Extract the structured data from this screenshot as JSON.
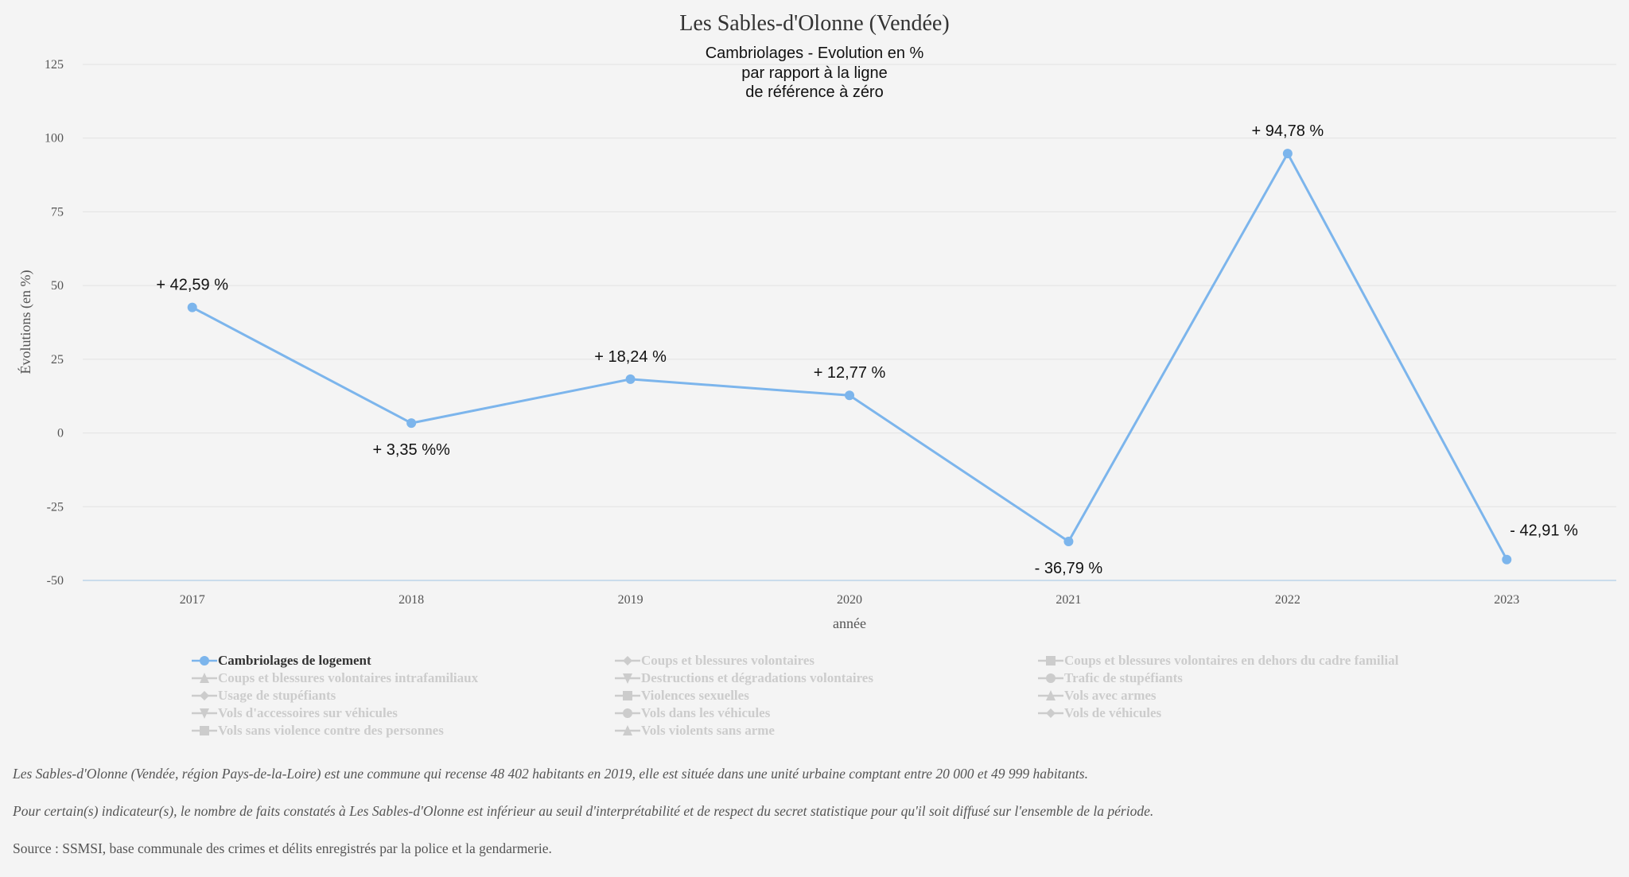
{
  "colors": {
    "series": "#7cb5ec",
    "inactive": "#cccccc",
    "background": "#f4f4f4"
  },
  "chart_data": {
    "type": "line",
    "title": "Les Sables-d'Olonne (Vendée)",
    "subtitle": [
      "Cambriolages - Evolution en %",
      "par rapport à la ligne",
      "de référence à zéro"
    ],
    "xlabel": "année",
    "ylabel": "Évolutions (en %)",
    "ylim": [
      -50,
      125
    ],
    "yticks": [
      -50,
      -25,
      0,
      25,
      50,
      75,
      100,
      125
    ],
    "ytick_labels": [
      "-50",
      "-25",
      "0",
      "25",
      "50",
      "75",
      "100",
      "125"
    ],
    "categories": [
      "2017",
      "2018",
      "2019",
      "2020",
      "2021",
      "2022",
      "2023"
    ],
    "grid": true,
    "series": [
      {
        "name": "Cambriolages de logement",
        "values": [
          42.59,
          3.35,
          18.24,
          12.77,
          -36.79,
          94.78,
          -42.91
        ],
        "labels": [
          "+ 42,59 %",
          "+ 3,35 %%",
          "+ 18,24 %",
          "+ 12,77 %",
          "- 36,79 %",
          "+ 94,78 %",
          "- 42,91 %"
        ],
        "label_positions": [
          "above",
          "below",
          "above",
          "above",
          "below",
          "above",
          "above-right"
        ]
      }
    ]
  },
  "legend": {
    "items": [
      {
        "label": "Cambriolages de logement",
        "symbol": "circle",
        "active": true
      },
      {
        "label": "Coups et blessures volontaires",
        "symbol": "diamond",
        "active": false
      },
      {
        "label": "Coups et blessures volontaires en dehors du cadre familial",
        "symbol": "square",
        "active": false
      },
      {
        "label": "Coups et blessures volontaires intrafamiliaux",
        "symbol": "triangle",
        "active": false
      },
      {
        "label": "Destructions et dégradations volontaires",
        "symbol": "triangle-down",
        "active": false
      },
      {
        "label": "Trafic de stupéfiants",
        "symbol": "circle",
        "active": false
      },
      {
        "label": "Usage de stupéfiants",
        "symbol": "diamond",
        "active": false
      },
      {
        "label": "Violences sexuelles",
        "symbol": "square",
        "active": false
      },
      {
        "label": "Vols avec armes",
        "symbol": "triangle",
        "active": false
      },
      {
        "label": "Vols d'accessoires sur véhicules",
        "symbol": "triangle-down",
        "active": false
      },
      {
        "label": "Vols dans les véhicules",
        "symbol": "circle",
        "active": false
      },
      {
        "label": "Vols de véhicules",
        "symbol": "diamond",
        "active": false
      },
      {
        "label": "Vols sans violence contre des personnes",
        "symbol": "square",
        "active": false
      },
      {
        "label": "Vols violents sans arme",
        "symbol": "triangle",
        "active": false
      }
    ]
  },
  "footer": {
    "description": "Les Sables-d'Olonne (Vendée, région Pays-de-la-Loire) est une commune qui recense 48 402 habitants en 2019, elle est située dans une unité urbaine comptant entre 20 000 et 49 999 habitants.",
    "note": "Pour certain(s) indicateur(s), le nombre de faits constatés à Les Sables-d'Olonne est inférieur au seuil d'interprétabilité et de respect du secret statistique pour qu'il soit diffusé sur l'ensemble de la période.",
    "source": "Source : SSMSI, base communale des crimes et délits enregistrés par la police et la gendarmerie."
  }
}
